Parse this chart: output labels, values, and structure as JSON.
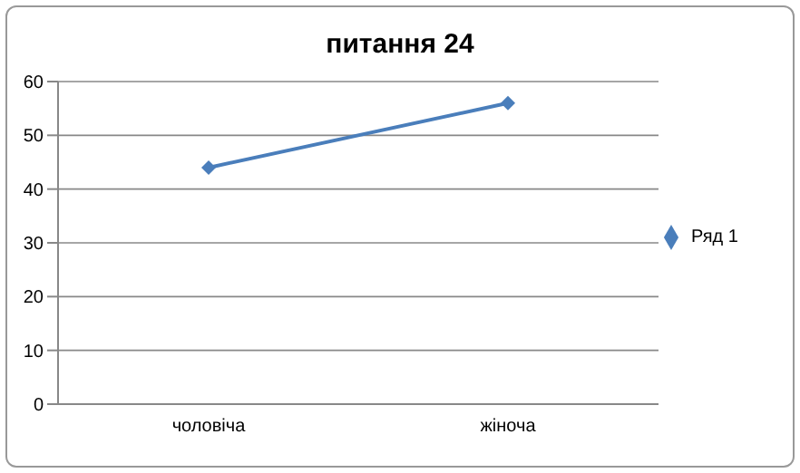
{
  "chart_data": {
    "type": "line",
    "title": "питання 24",
    "categories": [
      "чоловіча",
      "жіноча"
    ],
    "series": [
      {
        "name": "Ряд 1",
        "color": "#4a7ebb",
        "values": [
          44,
          56
        ]
      }
    ],
    "ylim": [
      0,
      60
    ],
    "yticks": [
      0,
      10,
      20,
      30,
      40,
      50,
      60
    ],
    "grid": "y",
    "legend": "right",
    "marker": "diamond"
  }
}
